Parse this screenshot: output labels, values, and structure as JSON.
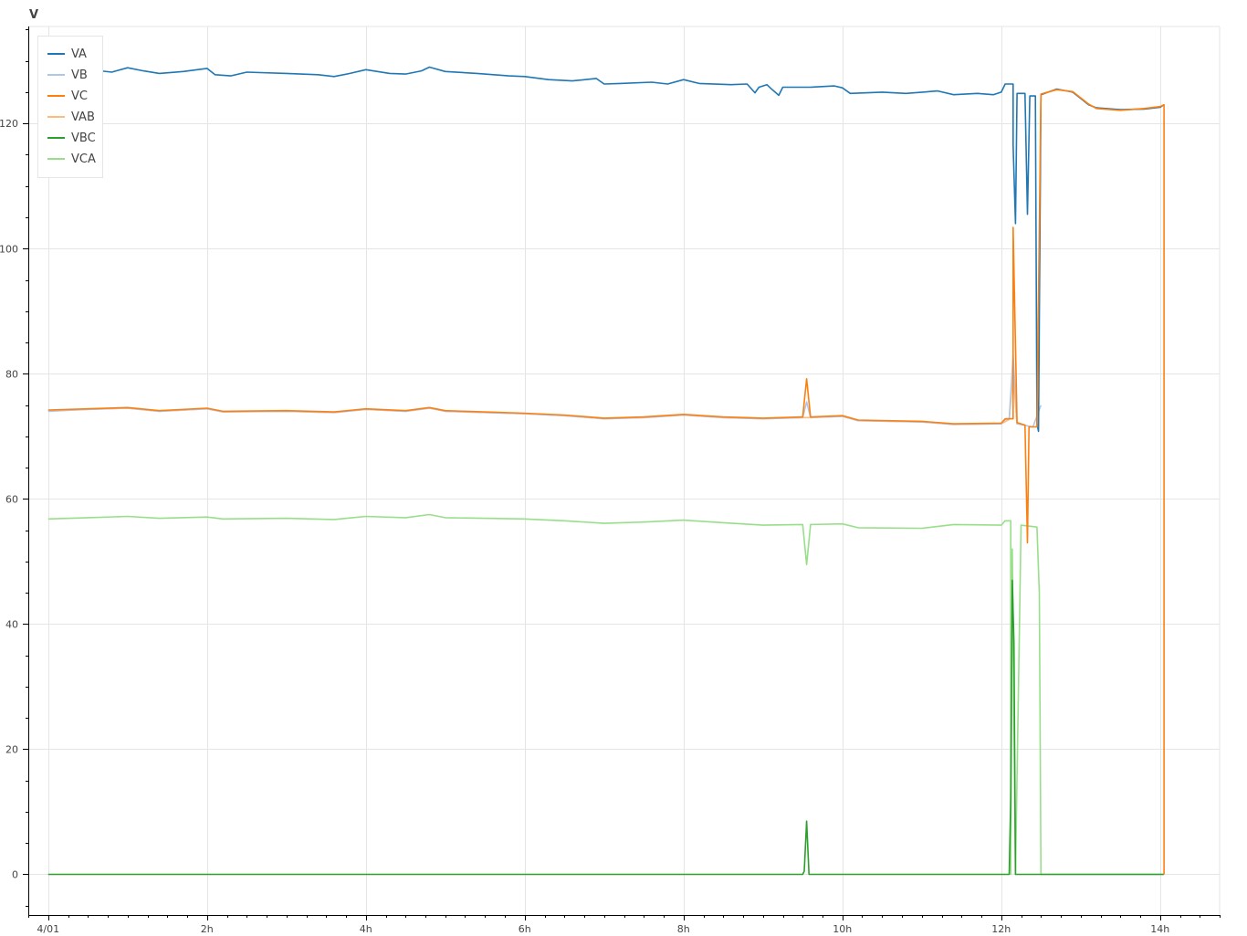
{
  "chart_data": {
    "type": "line",
    "ylabel": "V",
    "ylim": [
      -6.5,
      135.5
    ],
    "xlim": [
      -0.25,
      14.75
    ],
    "x_ticks": [
      {
        "value": 0,
        "label": "4/01"
      },
      {
        "value": 2,
        "label": "2h"
      },
      {
        "value": 4,
        "label": "4h"
      },
      {
        "value": 6,
        "label": "6h"
      },
      {
        "value": 8,
        "label": "8h"
      },
      {
        "value": 10,
        "label": "10h"
      },
      {
        "value": 12,
        "label": "12h"
      },
      {
        "value": 14,
        "label": "14h"
      }
    ],
    "y_ticks": [
      0,
      20,
      40,
      60,
      80,
      100,
      120
    ],
    "grid": true,
    "legend_position": "top-left",
    "series": [
      {
        "name": "VA",
        "color": "#1f77b4",
        "points": [
          [
            0,
            128.8
          ],
          [
            0.3,
            128.6
          ],
          [
            0.6,
            128.5
          ],
          [
            0.8,
            128.2
          ],
          [
            1.0,
            128.9
          ],
          [
            1.2,
            128.4
          ],
          [
            1.4,
            128.0
          ],
          [
            1.7,
            128.3
          ],
          [
            2.0,
            128.8
          ],
          [
            2.1,
            127.8
          ],
          [
            2.3,
            127.6
          ],
          [
            2.5,
            128.2
          ],
          [
            3.0,
            128.0
          ],
          [
            3.4,
            127.8
          ],
          [
            3.6,
            127.5
          ],
          [
            3.8,
            128.0
          ],
          [
            4.0,
            128.6
          ],
          [
            4.3,
            128.0
          ],
          [
            4.5,
            127.9
          ],
          [
            4.7,
            128.4
          ],
          [
            4.8,
            129.0
          ],
          [
            5.0,
            128.3
          ],
          [
            5.4,
            128.0
          ],
          [
            5.8,
            127.6
          ],
          [
            6.0,
            127.5
          ],
          [
            6.3,
            127.0
          ],
          [
            6.6,
            126.8
          ],
          [
            6.9,
            127.2
          ],
          [
            7.0,
            126.3
          ],
          [
            7.2,
            126.4
          ],
          [
            7.6,
            126.6
          ],
          [
            7.8,
            126.3
          ],
          [
            8.0,
            127.0
          ],
          [
            8.2,
            126.4
          ],
          [
            8.6,
            126.2
          ],
          [
            8.8,
            126.3
          ],
          [
            8.9,
            124.9
          ],
          [
            8.95,
            125.8
          ],
          [
            9.05,
            126.2
          ],
          [
            9.1,
            125.6
          ],
          [
            9.2,
            124.5
          ],
          [
            9.25,
            125.8
          ],
          [
            9.6,
            125.8
          ],
          [
            9.9,
            126.0
          ],
          [
            10.0,
            125.7
          ],
          [
            10.1,
            124.8
          ],
          [
            10.5,
            125.0
          ],
          [
            10.8,
            124.8
          ],
          [
            11.2,
            125.2
          ],
          [
            11.4,
            124.6
          ],
          [
            11.7,
            124.8
          ],
          [
            11.9,
            124.6
          ],
          [
            12.0,
            125.0
          ],
          [
            12.05,
            126.3
          ],
          [
            12.15,
            126.3
          ],
          [
            12.15,
            116.5
          ],
          [
            12.18,
            104.0
          ],
          [
            12.2,
            124.8
          ],
          [
            12.3,
            124.8
          ],
          [
            12.33,
            105.5
          ],
          [
            12.36,
            124.4
          ],
          [
            12.43,
            124.4
          ],
          [
            12.45,
            72.0
          ],
          [
            12.47,
            70.8
          ],
          [
            12.5,
            124.6
          ],
          [
            12.7,
            125.5
          ],
          [
            12.9,
            125.0
          ],
          [
            13.0,
            124.0
          ],
          [
            13.1,
            123.0
          ],
          [
            13.2,
            122.5
          ],
          [
            13.5,
            122.2
          ],
          [
            13.8,
            122.3
          ],
          [
            14.0,
            122.6
          ],
          [
            14.05,
            123.0
          ]
        ]
      },
      {
        "name": "VB",
        "color": "#aec7e8",
        "points": [
          [
            0,
            74.0
          ],
          [
            0.5,
            74.3
          ],
          [
            1.0,
            74.5
          ],
          [
            1.4,
            74.0
          ],
          [
            2.0,
            74.4
          ],
          [
            2.2,
            73.9
          ],
          [
            3.0,
            74.0
          ],
          [
            3.6,
            73.8
          ],
          [
            4.0,
            74.3
          ],
          [
            4.5,
            74.0
          ],
          [
            4.8,
            74.5
          ],
          [
            5.0,
            74.0
          ],
          [
            6.0,
            73.6
          ],
          [
            6.5,
            73.3
          ],
          [
            7.0,
            72.8
          ],
          [
            7.5,
            73.0
          ],
          [
            8.0,
            73.4
          ],
          [
            8.5,
            73.0
          ],
          [
            9.0,
            72.8
          ],
          [
            9.5,
            73.0
          ],
          [
            9.55,
            75.5
          ],
          [
            9.6,
            73.0
          ],
          [
            10.0,
            73.2
          ],
          [
            10.2,
            72.5
          ],
          [
            11.0,
            72.3
          ],
          [
            11.4,
            71.9
          ],
          [
            12.0,
            72.0
          ],
          [
            12.05,
            72.7
          ],
          [
            12.1,
            72.7
          ],
          [
            12.15,
            83.0
          ],
          [
            12.2,
            72.0
          ],
          [
            12.4,
            71.5
          ],
          [
            12.5,
            75.0
          ]
        ]
      },
      {
        "name": "VC",
        "color": "#ff7f0e",
        "points": [
          [
            0,
            74.2
          ],
          [
            0.5,
            74.4
          ],
          [
            1.0,
            74.6
          ],
          [
            1.4,
            74.1
          ],
          [
            2.0,
            74.5
          ],
          [
            2.2,
            74.0
          ],
          [
            3.0,
            74.1
          ],
          [
            3.6,
            73.9
          ],
          [
            4.0,
            74.4
          ],
          [
            4.5,
            74.1
          ],
          [
            4.8,
            74.6
          ],
          [
            5.0,
            74.1
          ],
          [
            6.0,
            73.7
          ],
          [
            6.5,
            73.4
          ],
          [
            7.0,
            72.9
          ],
          [
            7.5,
            73.1
          ],
          [
            8.0,
            73.5
          ],
          [
            8.5,
            73.1
          ],
          [
            9.0,
            72.9
          ],
          [
            9.5,
            73.1
          ],
          [
            9.55,
            79.2
          ],
          [
            9.6,
            73.1
          ],
          [
            10.0,
            73.3
          ],
          [
            10.2,
            72.6
          ],
          [
            11.0,
            72.4
          ],
          [
            11.4,
            72.0
          ],
          [
            12.0,
            72.1
          ],
          [
            12.05,
            72.8
          ],
          [
            12.15,
            72.8
          ],
          [
            12.15,
            103.4
          ],
          [
            12.2,
            72.2
          ],
          [
            12.3,
            71.8
          ],
          [
            12.33,
            53.0
          ],
          [
            12.35,
            71.5
          ],
          [
            12.45,
            71.5
          ],
          [
            12.5,
            124.7
          ],
          [
            12.7,
            125.4
          ],
          [
            12.9,
            125.1
          ],
          [
            13.0,
            124.1
          ],
          [
            13.1,
            123.1
          ],
          [
            13.2,
            122.4
          ],
          [
            13.5,
            122.1
          ],
          [
            13.8,
            122.4
          ],
          [
            14.0,
            122.7
          ],
          [
            14.05,
            123.0
          ],
          [
            14.05,
            0.0
          ]
        ]
      },
      {
        "name": "VAB",
        "color": "#ffbb78",
        "points": [
          [
            0,
            74.1
          ],
          [
            0.5,
            74.3
          ],
          [
            1.0,
            74.5
          ],
          [
            1.4,
            74.0
          ],
          [
            2.0,
            74.4
          ],
          [
            2.2,
            73.9
          ],
          [
            3.0,
            74.0
          ],
          [
            3.6,
            73.8
          ],
          [
            4.0,
            74.3
          ],
          [
            4.5,
            74.0
          ],
          [
            4.8,
            74.5
          ],
          [
            5.0,
            74.0
          ],
          [
            6.0,
            73.6
          ],
          [
            6.5,
            73.3
          ],
          [
            7.0,
            72.8
          ],
          [
            7.5,
            73.0
          ],
          [
            8.0,
            73.4
          ],
          [
            8.5,
            73.0
          ],
          [
            9.0,
            72.8
          ],
          [
            9.5,
            73.0
          ],
          [
            9.6,
            73.0
          ],
          [
            10.0,
            73.2
          ],
          [
            10.2,
            72.5
          ],
          [
            11.0,
            72.3
          ],
          [
            11.4,
            71.9
          ],
          [
            12.0,
            72.0
          ],
          [
            12.1,
            72.7
          ],
          [
            12.15,
            80.0
          ],
          [
            12.2,
            71.9
          ]
        ]
      },
      {
        "name": "VBC",
        "color": "#2ca02c",
        "points": [
          [
            0,
            0
          ],
          [
            9.5,
            0
          ],
          [
            9.52,
            0.5
          ],
          [
            9.55,
            8.5
          ],
          [
            9.58,
            0
          ],
          [
            12.1,
            0
          ],
          [
            12.12,
            12.0
          ],
          [
            12.14,
            47.0
          ],
          [
            12.16,
            37.0
          ],
          [
            12.18,
            0
          ],
          [
            14.05,
            0
          ]
        ]
      },
      {
        "name": "VCA",
        "color": "#98df8a",
        "points": [
          [
            0,
            56.8
          ],
          [
            0.5,
            57.0
          ],
          [
            1.0,
            57.2
          ],
          [
            1.4,
            56.9
          ],
          [
            2.0,
            57.1
          ],
          [
            2.2,
            56.8
          ],
          [
            3.0,
            56.9
          ],
          [
            3.6,
            56.7
          ],
          [
            4.0,
            57.2
          ],
          [
            4.5,
            57.0
          ],
          [
            4.8,
            57.5
          ],
          [
            5.0,
            57.0
          ],
          [
            6.0,
            56.8
          ],
          [
            6.5,
            56.5
          ],
          [
            7.0,
            56.1
          ],
          [
            7.5,
            56.3
          ],
          [
            8.0,
            56.6
          ],
          [
            8.5,
            56.2
          ],
          [
            9.0,
            55.8
          ],
          [
            9.5,
            55.9
          ],
          [
            9.55,
            49.5
          ],
          [
            9.6,
            55.9
          ],
          [
            10.0,
            56.0
          ],
          [
            10.2,
            55.4
          ],
          [
            11.0,
            55.3
          ],
          [
            11.4,
            55.9
          ],
          [
            12.0,
            55.8
          ],
          [
            12.05,
            56.5
          ],
          [
            12.12,
            56.5
          ],
          [
            12.12,
            0.0
          ],
          [
            12.14,
            52.0
          ],
          [
            12.18,
            0.0
          ],
          [
            12.25,
            55.8
          ],
          [
            12.45,
            55.5
          ],
          [
            12.48,
            45.0
          ],
          [
            12.5,
            0.0
          ],
          [
            14.05,
            0.0
          ]
        ]
      }
    ]
  }
}
